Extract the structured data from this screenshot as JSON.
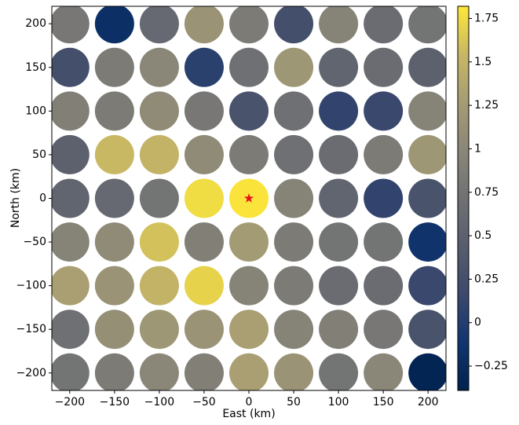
{
  "chart_data": {
    "type": "scatter",
    "xlabel": "East (km)",
    "ylabel": "North (km)",
    "xlim": [
      -220,
      220
    ],
    "ylim": [
      -220,
      220
    ],
    "xticks": [
      {
        "value": -200,
        "label": "−200"
      },
      {
        "value": -150,
        "label": "−150"
      },
      {
        "value": -100,
        "label": "−100"
      },
      {
        "value": -50,
        "label": "−50"
      },
      0,
      50,
      100,
      150,
      200
    ],
    "yticks": [
      {
        "value": -200,
        "label": "−200"
      },
      {
        "value": -150,
        "label": "−150"
      },
      {
        "value": -100,
        "label": "−100"
      },
      {
        "value": -50,
        "label": "−50"
      },
      0,
      50,
      100,
      150,
      200
    ],
    "colormap": "cividis",
    "clim": [
      -0.39,
      1.82
    ],
    "cticks": [
      {
        "value": -0.25,
        "label": "−0.25"
      },
      0,
      0.25,
      0.5,
      0.75,
      1,
      1.25,
      1.5,
      1.75
    ],
    "series": [
      {
        "x": [
          -200,
          -150,
          -100,
          -50,
          0,
          50,
          100,
          150,
          200,
          -200,
          -150,
          -100,
          -50,
          0,
          50,
          100,
          150,
          200,
          -200,
          -150,
          -100,
          -50,
          0,
          50,
          100,
          150,
          200,
          -200,
          -150,
          -100,
          -50,
          0,
          50,
          100,
          150,
          200,
          -200,
          -150,
          -100,
          -50,
          0,
          50,
          100,
          150,
          200,
          -200,
          -150,
          -100,
          -50,
          0,
          50,
          100,
          150,
          200,
          -200,
          -150,
          -100,
          -50,
          0,
          50,
          100,
          150,
          200,
          -200,
          -150,
          -100,
          -50,
          0,
          50,
          100,
          150,
          200,
          -200,
          -150,
          -100,
          -50,
          0,
          50,
          100,
          150,
          200
        ],
        "y": [
          200,
          200,
          200,
          200,
          200,
          200,
          200,
          200,
          200,
          150,
          150,
          150,
          150,
          150,
          150,
          150,
          150,
          150,
          100,
          100,
          100,
          100,
          100,
          100,
          100,
          100,
          100,
          50,
          50,
          50,
          50,
          50,
          50,
          50,
          50,
          50,
          0,
          0,
          0,
          0,
          0,
          0,
          0,
          0,
          0,
          -50,
          -50,
          -50,
          -50,
          -50,
          -50,
          -50,
          -50,
          -50,
          -100,
          -100,
          -100,
          -100,
          -100,
          -100,
          -100,
          -100,
          -100,
          -150,
          -150,
          -150,
          -150,
          -150,
          -150,
          -150,
          -150,
          -150,
          -200,
          -200,
          -200,
          -200,
          -200,
          -200,
          -200,
          -200,
          -200
        ],
        "values": [
          0.8,
          -0.2,
          0.6,
          1.15,
          0.85,
          0.25,
          0.95,
          0.65,
          0.75,
          0.25,
          0.85,
          1.0,
          0.05,
          0.7,
          1.2,
          0.55,
          0.65,
          0.5,
          0.9,
          0.85,
          1.05,
          0.8,
          0.3,
          0.7,
          0.1,
          0.15,
          0.95,
          0.5,
          1.55,
          1.5,
          1.05,
          0.85,
          0.7,
          0.65,
          0.85,
          1.2,
          0.55,
          0.6,
          0.75,
          1.75,
          1.8,
          0.95,
          0.55,
          0.1,
          0.3,
          0.95,
          1.05,
          1.6,
          0.9,
          1.25,
          0.85,
          0.75,
          0.75,
          -0.15,
          1.3,
          1.15,
          1.5,
          1.7,
          0.95,
          0.85,
          0.65,
          0.65,
          0.15,
          0.7,
          1.1,
          1.2,
          1.15,
          1.3,
          0.95,
          0.9,
          0.8,
          0.3,
          0.75,
          0.85,
          1.0,
          0.9,
          1.3,
          1.15,
          0.75,
          1.0,
          -0.35
        ]
      },
      {
        "x": [
          0
        ],
        "y": [
          0
        ],
        "color": "#e8141c",
        "marker": "star"
      }
    ]
  }
}
